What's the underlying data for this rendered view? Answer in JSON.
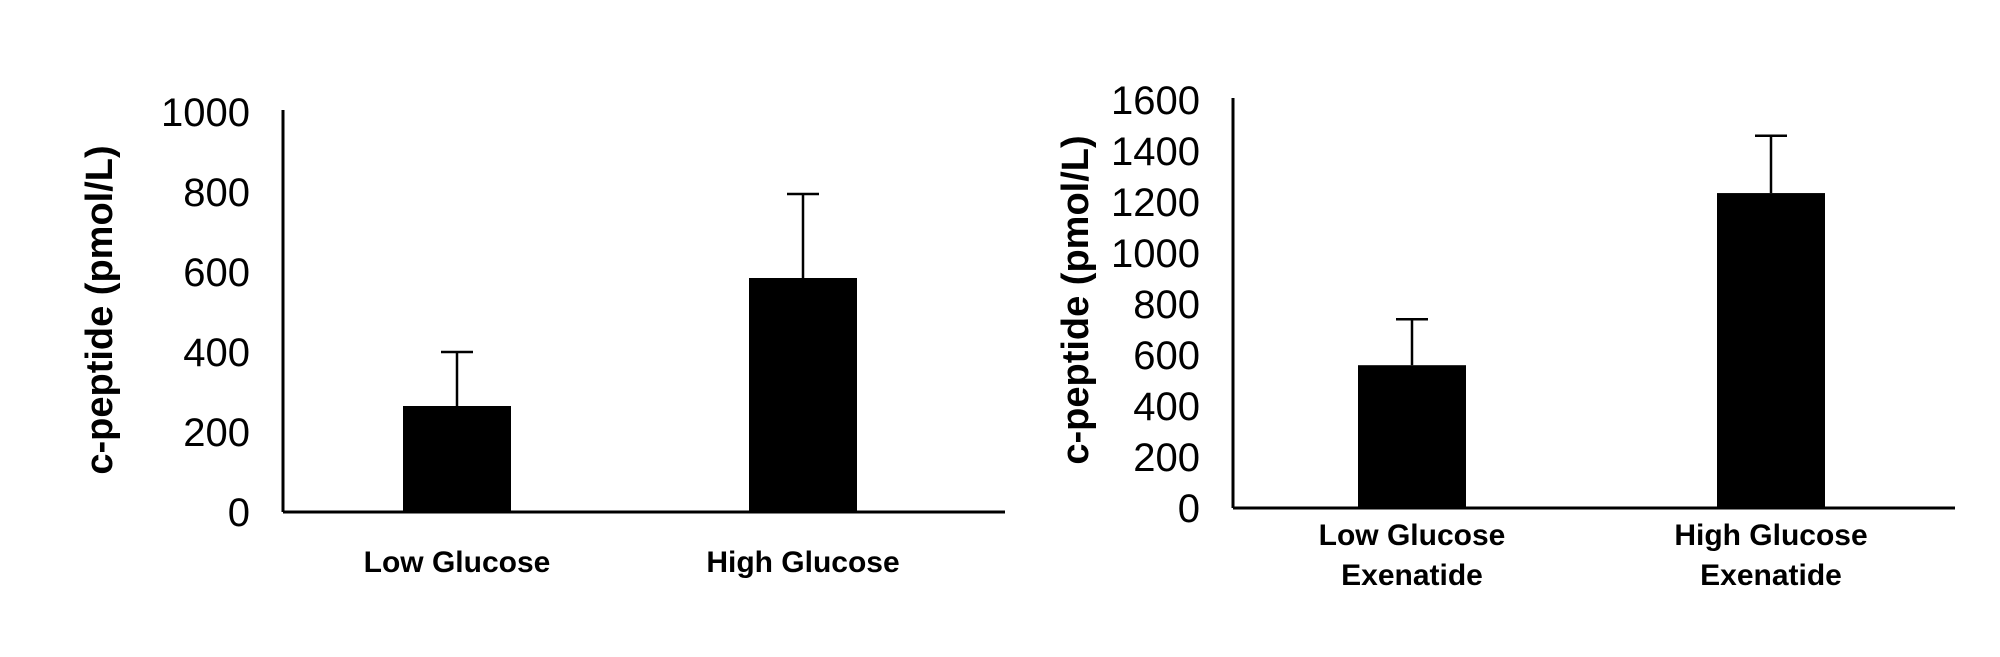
{
  "chart_data": [
    {
      "type": "bar",
      "categories": [
        [
          "Low Glucose"
        ],
        [
          "High Glucose"
        ]
      ],
      "values": [
        265,
        585
      ],
      "error_upper": [
        400,
        795
      ],
      "ylabel": "c-peptide (pmol/L)",
      "xlabel": "",
      "ylim": [
        0,
        1000
      ],
      "yticks": [
        0,
        200,
        400,
        600,
        800,
        1000
      ],
      "bar_color": "#000000",
      "grid": false
    },
    {
      "type": "bar",
      "categories": [
        [
          "Low Glucose",
          "Exenatide"
        ],
        [
          "High Glucose",
          "Exenatide"
        ]
      ],
      "values": [
        560,
        1235
      ],
      "error_upper": [
        740,
        1460
      ],
      "ylabel": "c-peptide (pmol/L)",
      "xlabel": "",
      "ylim": [
        0,
        1600
      ],
      "yticks": [
        0,
        200,
        400,
        600,
        800,
        1000,
        1200,
        1400,
        1600
      ],
      "bar_color": "#000000",
      "grid": false
    }
  ]
}
